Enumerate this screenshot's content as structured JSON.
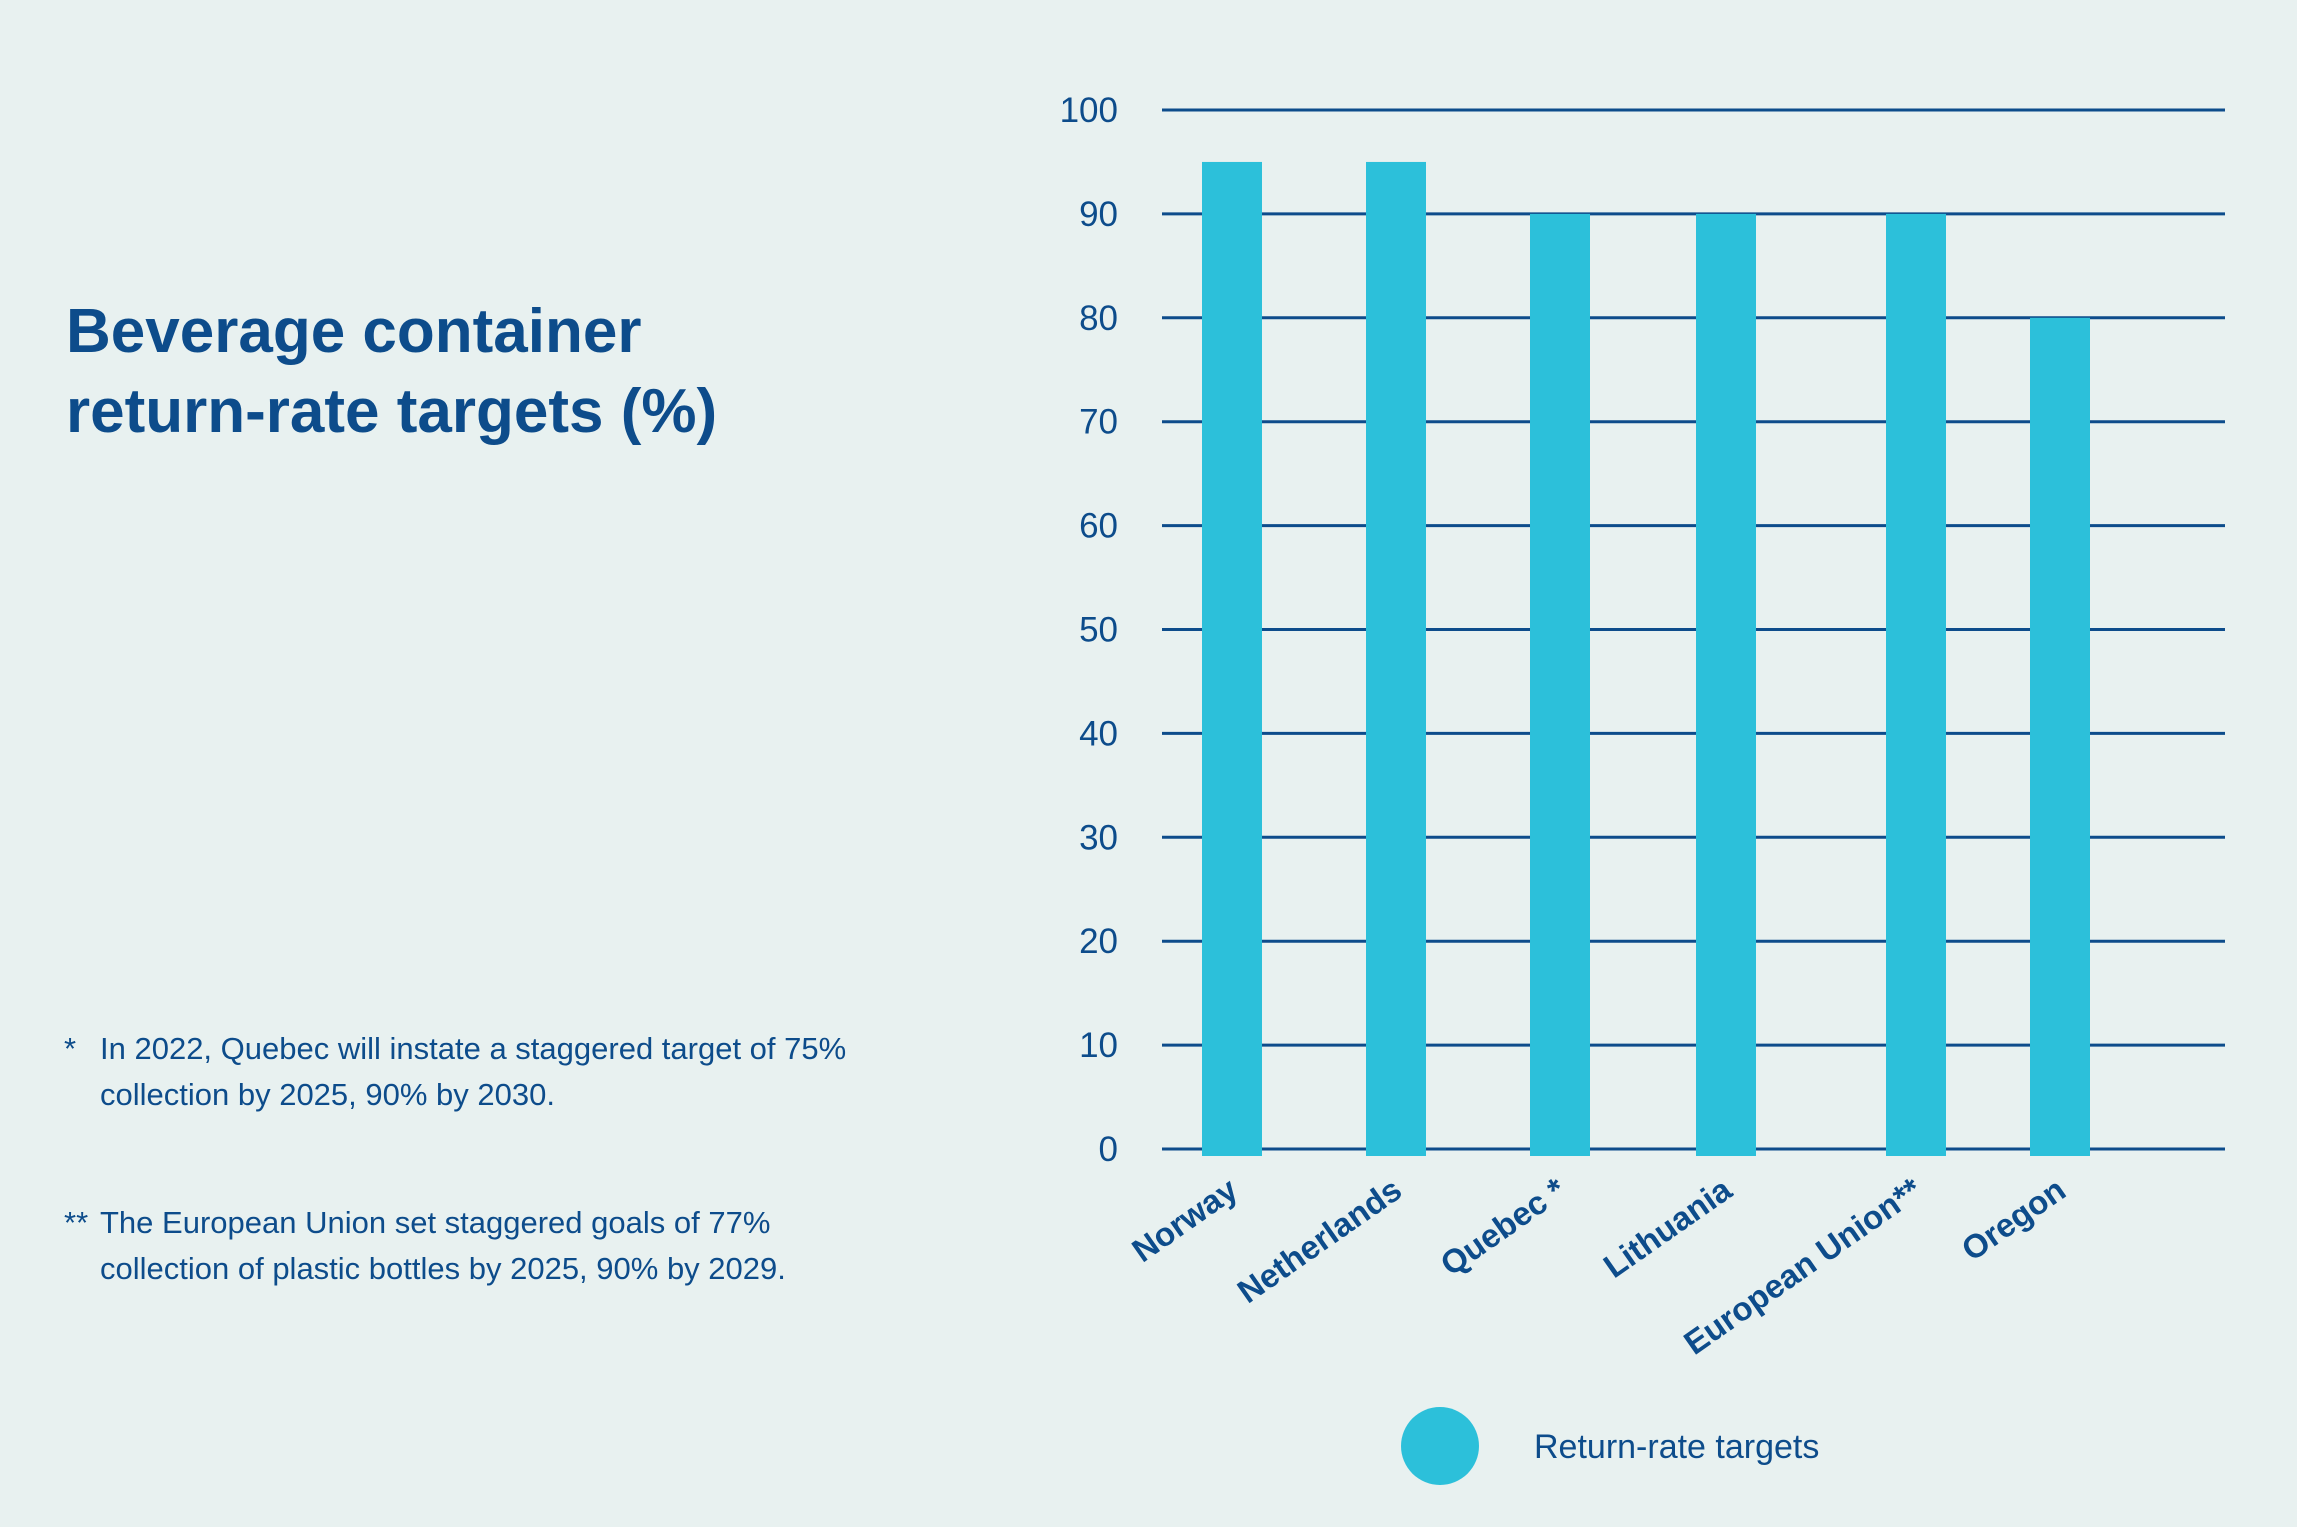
{
  "title_line1": "Beverage container",
  "title_line2": "return-rate targets (%)",
  "footnotes": [
    {
      "mark": "*",
      "line1": "In 2022, Quebec will instate a staggered target of 75%",
      "line2": "collection by 2025, 90% by 2030."
    },
    {
      "mark": "**",
      "line1": "The European Union set staggered goals of 77%",
      "line2": "collection of plastic bottles by 2025, 90% by 2029."
    }
  ],
  "chart_data": {
    "type": "bar",
    "title": "Beverage container return-rate targets (%)",
    "categories": [
      "Norway",
      "Netherlands",
      "Quebec *",
      "Lithuania",
      "European Union**",
      "Oregon"
    ],
    "series": [
      {
        "name": "Return-rate targets",
        "values": [
          95,
          95,
          90,
          90,
          90,
          80
        ]
      }
    ],
    "ylim": [
      0,
      100
    ],
    "yticks": [
      0,
      10,
      20,
      30,
      40,
      50,
      60,
      70,
      80,
      90,
      100
    ],
    "grid": true,
    "legend": "bottom",
    "colors": {
      "bar": "#2cc0da",
      "grid": "#0d4c8b",
      "text": "#0d4c8b"
    }
  }
}
